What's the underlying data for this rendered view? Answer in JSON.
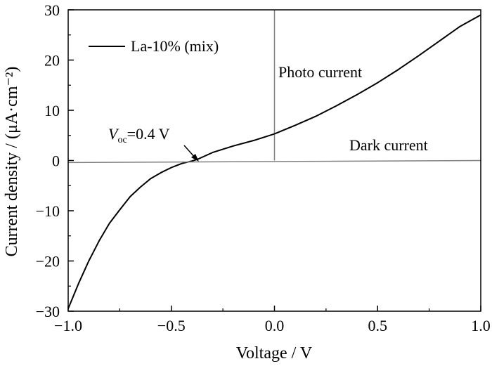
{
  "chart_data": {
    "type": "line",
    "x_ticks": [
      "−1.0",
      "−0.5",
      "0.0",
      "0.5",
      "1.0"
    ],
    "x_tick_values": [
      -1.0,
      -0.5,
      0.0,
      0.5,
      1.0
    ],
    "y_ticks": [
      "30",
      "20",
      "10",
      "0",
      "−10",
      "−20",
      "−30"
    ],
    "y_tick_values": [
      30,
      20,
      10,
      0,
      -10,
      -20,
      -30
    ],
    "xlim": [
      -1.0,
      1.0
    ],
    "ylim": [
      -30,
      30
    ],
    "xlabel": "Voltage / V",
    "ylabel": "Current density / (μA·cm⁻²)",
    "legend": {
      "label": "La-10% (mix)",
      "placement": "top-left"
    },
    "annotations": {
      "photo": "Photo current",
      "dark": "Dark current",
      "voc_symbol": "V",
      "voc_sub": "oc",
      "voc_value": "=0.4 V"
    },
    "series": [
      {
        "name": "La-10% (mix)",
        "color": "#000000",
        "x": [
          -1.0,
          -0.95,
          -0.9,
          -0.85,
          -0.8,
          -0.75,
          -0.7,
          -0.65,
          -0.6,
          -0.55,
          -0.5,
          -0.45,
          -0.4,
          -0.37,
          -0.3,
          -0.2,
          -0.1,
          0.0,
          0.1,
          0.2,
          0.3,
          0.4,
          0.5,
          0.6,
          0.7,
          0.8,
          0.9,
          1.0
        ],
        "y": [
          -29.5,
          -24.5,
          -20.0,
          -16.0,
          -12.5,
          -9.8,
          -7.2,
          -5.3,
          -3.6,
          -2.4,
          -1.4,
          -0.6,
          -0.1,
          0.3,
          1.6,
          2.9,
          4.0,
          5.3,
          7.0,
          8.8,
          10.9,
          13.1,
          15.5,
          18.1,
          20.9,
          23.8,
          26.7,
          29.0
        ]
      },
      {
        "name": "Dark current",
        "color": "#7f7f7f",
        "x": [
          -1.0,
          1.0
        ],
        "y": [
          -0.4,
          0.0
        ]
      }
    ],
    "reference_lines": [
      {
        "orientation": "vertical",
        "x": 0.0,
        "y_range": [
          0,
          30
        ],
        "color": "#7f7f7f"
      }
    ]
  }
}
